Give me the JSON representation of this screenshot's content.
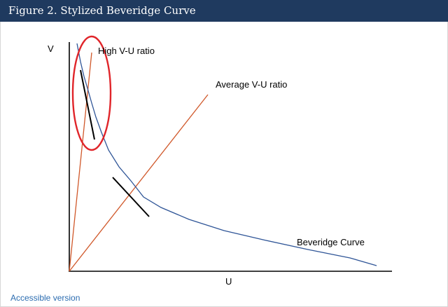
{
  "header": {
    "title": "Figure 2. Stylized Beveridge Curve"
  },
  "diagram": {
    "y_axis_label": "V",
    "x_axis_label": "U",
    "high_ratio_label": "High V-U ratio",
    "average_ratio_label": "Average V-U ratio",
    "curve_label": "Beveridge Curve",
    "colors": {
      "curve": "#2f5597",
      "ratio_lines": "#d0582a",
      "highlight_circle": "#e0252a",
      "tangents": "#000000",
      "axes": "#000000",
      "header_background": "#1f3a5f",
      "link": "#2b6cb0"
    }
  },
  "footer": {
    "accessible_link": "Accessible version"
  }
}
